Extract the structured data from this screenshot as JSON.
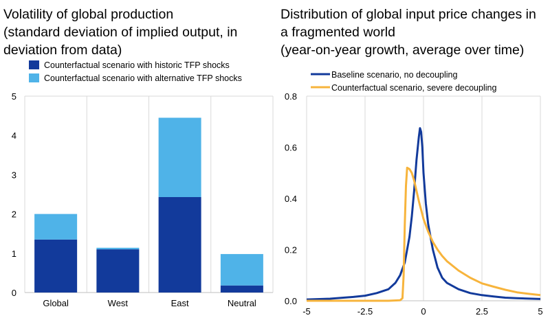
{
  "colors": {
    "dark_blue": "#123a9b",
    "light_blue": "#4fb3e8",
    "orange": "#f7b43c",
    "grid": "#d9d9d9"
  },
  "left_title": [
    "Volatility of global production",
    "(standard deviation of implied output, in",
    "deviation from data)"
  ],
  "right_title": [
    "Distribution of global input price changes in",
    "a fragmented world",
    "(year-on-year growth, average over time)"
  ],
  "chart_data": [
    {
      "type": "bar",
      "stacked": true,
      "categories": [
        "Global",
        "West",
        "East",
        "Neutral"
      ],
      "series": [
        {
          "name": "Counterfactual scenario with historic TFP shocks",
          "color": "#123a9b",
          "values": [
            1.35,
            1.1,
            2.43,
            0.18
          ]
        },
        {
          "name": "Counterfactual scenario with alternative TFP shocks",
          "color": "#4fb3e8",
          "values": [
            0.65,
            0.04,
            2.02,
            0.8
          ]
        }
      ],
      "ylim": [
        0,
        5
      ],
      "yticks": [
        "0",
        "1",
        "2",
        "3",
        "4",
        "5"
      ],
      "ytick_values": [
        0,
        1,
        2,
        3,
        4,
        5
      ],
      "legend_position": "top-left",
      "grid": "vertical"
    },
    {
      "type": "line",
      "xlim": [
        -5,
        5
      ],
      "ylim": [
        0,
        0.8
      ],
      "xticks": [
        "-5",
        "-2.5",
        "0",
        "2.5",
        "5"
      ],
      "xtick_values": [
        -5,
        -2.5,
        0,
        2.5,
        5
      ],
      "yticks": [
        "0.0",
        "0.2",
        "0.4",
        "0.6",
        "0.8"
      ],
      "ytick_values": [
        0,
        0.2,
        0.4,
        0.6,
        0.8
      ],
      "legend_position": "top-left",
      "grid": "vertical",
      "series": [
        {
          "name": "Baseline scenario, no decoupling",
          "color": "#123a9b",
          "points": [
            [
              -5,
              0.005
            ],
            [
              -4,
              0.008
            ],
            [
              -3,
              0.015
            ],
            [
              -2.5,
              0.02
            ],
            [
              -2,
              0.03
            ],
            [
              -1.5,
              0.045
            ],
            [
              -1.2,
              0.07
            ],
            [
              -1,
              0.1
            ],
            [
              -0.8,
              0.15
            ],
            [
              -0.6,
              0.25
            ],
            [
              -0.5,
              0.33
            ],
            [
              -0.4,
              0.43
            ],
            [
              -0.3,
              0.55
            ],
            [
              -0.2,
              0.64
            ],
            [
              -0.15,
              0.675
            ],
            [
              -0.1,
              0.66
            ],
            [
              -0.05,
              0.6
            ],
            [
              0,
              0.5
            ],
            [
              0.1,
              0.38
            ],
            [
              0.2,
              0.3
            ],
            [
              0.4,
              0.2
            ],
            [
              0.6,
              0.13
            ],
            [
              0.8,
              0.09
            ],
            [
              1,
              0.07
            ],
            [
              1.5,
              0.045
            ],
            [
              2,
              0.03
            ],
            [
              2.5,
              0.022
            ],
            [
              3,
              0.017
            ],
            [
              3.5,
              0.012
            ],
            [
              4,
              0.01
            ],
            [
              5,
              0.007
            ]
          ]
        },
        {
          "name": "Counterfactual scenario, severe decoupling",
          "color": "#f7b43c",
          "points": [
            [
              -5,
              0
            ],
            [
              -3,
              0
            ],
            [
              -1.5,
              0
            ],
            [
              -1,
              0.002
            ],
            [
              -0.9,
              0.01
            ],
            [
              -0.85,
              0.1
            ],
            [
              -0.8,
              0.3
            ],
            [
              -0.75,
              0.45
            ],
            [
              -0.7,
              0.52
            ],
            [
              -0.6,
              0.515
            ],
            [
              -0.5,
              0.5
            ],
            [
              -0.4,
              0.47
            ],
            [
              -0.3,
              0.43
            ],
            [
              -0.2,
              0.39
            ],
            [
              0,
              0.32
            ],
            [
              0.2,
              0.27
            ],
            [
              0.4,
              0.23
            ],
            [
              0.6,
              0.2
            ],
            [
              0.8,
              0.175
            ],
            [
              1,
              0.155
            ],
            [
              1.5,
              0.118
            ],
            [
              2,
              0.09
            ],
            [
              2.5,
              0.068
            ],
            [
              3,
              0.055
            ],
            [
              3.5,
              0.043
            ],
            [
              4,
              0.033
            ],
            [
              4.5,
              0.027
            ],
            [
              5,
              0.022
            ]
          ]
        }
      ]
    }
  ]
}
